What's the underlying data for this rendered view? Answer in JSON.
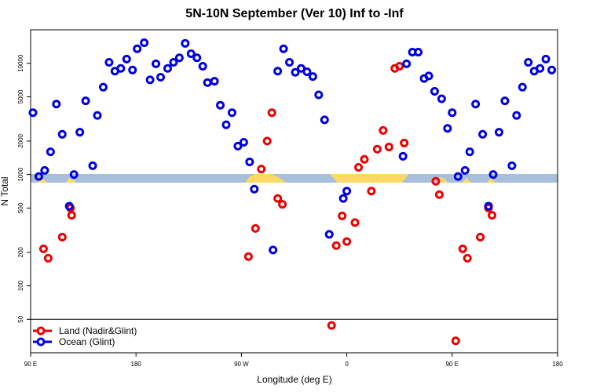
{
  "chart_data": {
    "type": "scatter",
    "title": "5N-10N September (Ver 10)   Inf to -Inf",
    "xlabel": "Longitude (deg E)",
    "ylabel": "N Total",
    "xlim": [
      90,
      540
    ],
    "ylim": [
      25,
      20000
    ],
    "log_y": true,
    "legend": "lower left",
    "xticks": [
      {
        "value": 90,
        "label": "90 E"
      },
      180,
      {
        "value": 270,
        "label": "90 W"
      },
      {
        "value": 360,
        "label": "0"
      },
      {
        "value": 450,
        "label": "90 E"
      },
      {
        "value": 540,
        "label": "180"
      }
    ],
    "yticks": [
      50,
      100,
      200,
      500,
      1000,
      2000,
      5000,
      10000
    ],
    "series": [
      {
        "name": "Land (Nadir&Glint)",
        "color": "#ee0000",
        "x": [
          101,
          105,
          117,
          124,
          125,
          276,
          282,
          287,
          292,
          296,
          301,
          305,
          347,
          351,
          356,
          360,
          367,
          370,
          375,
          381,
          386,
          391,
          396,
          401,
          405,
          409,
          436,
          439,
          453,
          459,
          463,
          474,
          481,
          484
        ],
        "values": [
          215,
          177,
          274,
          500,
          430,
          183,
          328,
          1120,
          2000,
          3600,
          610,
          540,
          44,
          230,
          425,
          250,
          370,
          1160,
          1370,
          710,
          1690,
          2490,
          1770,
          9000,
          9400,
          1920,
          870,
          660,
          32,
          215,
          177,
          274,
          500,
          430
        ]
      },
      {
        "name": "Ocean (Glint)",
        "color": "#0000dd",
        "x": [
          92,
          97,
          102,
          107,
          112,
          117,
          123,
          127,
          132,
          137,
          143,
          147,
          152,
          157,
          162,
          167,
          172,
          177,
          181,
          187,
          192,
          197,
          201,
          207,
          212,
          217,
          222,
          227,
          232,
          237,
          241,
          247,
          252,
          257,
          262,
          267,
          272,
          277,
          281,
          297,
          301,
          306,
          311,
          316,
          321,
          326,
          331,
          336,
          341,
          345,
          357,
          360,
          408,
          411,
          416,
          421,
          426,
          430,
          435,
          441,
          446,
          450,
          455,
          461,
          465,
          470,
          476,
          481,
          485,
          490,
          495,
          501,
          505,
          510,
          515,
          520,
          525,
          530,
          535
        ],
        "values": [
          3600,
          960,
          1090,
          1600,
          4300,
          2300,
          520,
          1000,
          2400,
          4600,
          1200,
          3400,
          6100,
          10200,
          8500,
          9000,
          10900,
          8700,
          13500,
          15300,
          7100,
          9900,
          7500,
          9000,
          10200,
          11200,
          15100,
          12200,
          11200,
          9400,
          6700,
          6900,
          4200,
          2800,
          3600,
          1800,
          1950,
          1300,
          740,
          210,
          8500,
          13500,
          10200,
          8300,
          9000,
          8400,
          7600,
          5200,
          3100,
          290,
          610,
          710,
          1460,
          9900,
          12600,
          12600,
          7300,
          7700,
          5600,
          4800,
          2600,
          3600,
          960,
          1090,
          1600,
          4300,
          2300,
          520,
          1000,
          2400,
          4600,
          1200,
          3400,
          6100,
          10200,
          8500,
          9000,
          10900,
          8700
        ]
      }
    ]
  }
}
